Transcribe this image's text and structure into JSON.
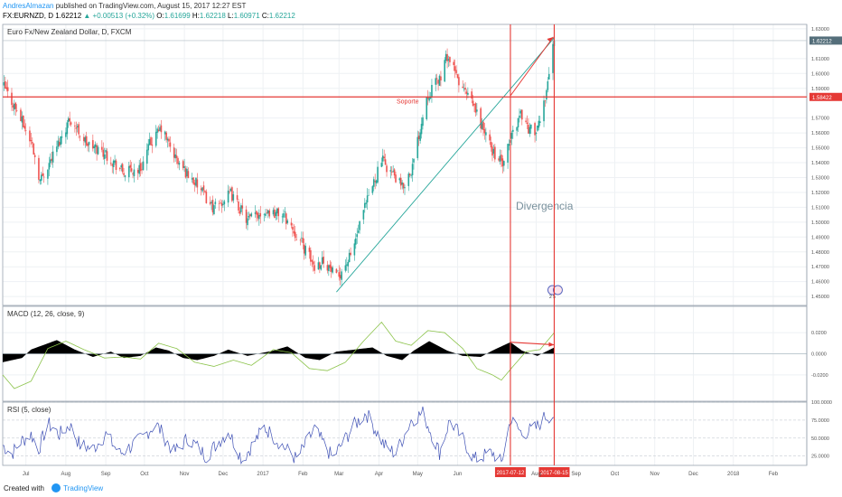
{
  "header": {
    "author": "AndresAlmazan",
    "published": "published on TradingView.com, August 15, 2017 12:27 EST",
    "symbol": "FX:EURNZD, D",
    "last": "1.62212",
    "change": "+0.00513 (+0.32%)",
    "o_label": "O:",
    "o_val": "1.61699",
    "h_label": "H:",
    "h_val": "1.62218",
    "l_label": "L:",
    "l_val": "1.60971",
    "c_label": "C:",
    "c_val": "1.62212"
  },
  "footer": {
    "created_with": "Created with",
    "brand": "TradingView"
  },
  "chart_data": {
    "type": "candlestick",
    "title": "Euro Fx/New Zealand Dollar, D, FXCM",
    "x_range": [
      "2016-06-13",
      "2018-02-27"
    ],
    "x_ticks": [
      {
        "label": "Jul",
        "date": "2016-07-01"
      },
      {
        "label": "Aug",
        "date": "2016-08-01"
      },
      {
        "label": "Sep",
        "date": "2016-09-01"
      },
      {
        "label": "Oct",
        "date": "2016-10-01"
      },
      {
        "label": "Nov",
        "date": "2016-11-01"
      },
      {
        "label": "Dec",
        "date": "2016-12-01"
      },
      {
        "label": "2017",
        "date": "2017-01-01"
      },
      {
        "label": "Feb",
        "date": "2017-02-01"
      },
      {
        "label": "Mar",
        "date": "2017-03-01"
      },
      {
        "label": "Apr",
        "date": "2017-04-01"
      },
      {
        "label": "May",
        "date": "2017-05-01"
      },
      {
        "label": "Jun",
        "date": "2017-06-01"
      },
      {
        "label": "Aug",
        "date": "2017-08-01"
      },
      {
        "label": "Sep",
        "date": "2017-09-01"
      },
      {
        "label": "Oct",
        "date": "2017-10-01"
      },
      {
        "label": "Nov",
        "date": "2017-11-01"
      },
      {
        "label": "Dec",
        "date": "2017-12-01"
      },
      {
        "label": "2018",
        "date": "2018-01-01"
      },
      {
        "label": "Feb",
        "date": "2018-02-01"
      }
    ],
    "price": {
      "ylim": [
        1.444,
        1.633
      ],
      "y_ticks": [
        "1.63000",
        "1.61000",
        "1.60000",
        "1.59000",
        "1.57000",
        "1.56000",
        "1.55000",
        "1.54000",
        "1.53000",
        "1.52000",
        "1.51000",
        "1.50000",
        "1.49000",
        "1.48000",
        "1.47000",
        "1.46000",
        "1.45000"
      ],
      "close_anchors": [
        {
          "date": "2016-06-14",
          "value": 1.591
        },
        {
          "date": "2016-06-24",
          "value": 1.575
        },
        {
          "date": "2016-07-06",
          "value": 1.552
        },
        {
          "date": "2016-07-12",
          "value": 1.528
        },
        {
          "date": "2016-07-22",
          "value": 1.545
        },
        {
          "date": "2016-08-04",
          "value": 1.57
        },
        {
          "date": "2016-08-18",
          "value": 1.552
        },
        {
          "date": "2016-08-31",
          "value": 1.547
        },
        {
          "date": "2016-09-15",
          "value": 1.533
        },
        {
          "date": "2016-09-28",
          "value": 1.536
        },
        {
          "date": "2016-10-05",
          "value": 1.552
        },
        {
          "date": "2016-10-14",
          "value": 1.563
        },
        {
          "date": "2016-10-27",
          "value": 1.54
        },
        {
          "date": "2016-11-09",
          "value": 1.527
        },
        {
          "date": "2016-11-24",
          "value": 1.509
        },
        {
          "date": "2016-12-07",
          "value": 1.519
        },
        {
          "date": "2016-12-20",
          "value": 1.501
        },
        {
          "date": "2017-01-02",
          "value": 1.508
        },
        {
          "date": "2017-01-17",
          "value": 1.505
        },
        {
          "date": "2017-01-31",
          "value": 1.486
        },
        {
          "date": "2017-02-10",
          "value": 1.47
        },
        {
          "date": "2017-02-17",
          "value": 1.475
        },
        {
          "date": "2017-02-27",
          "value": 1.462
        },
        {
          "date": "2017-03-10",
          "value": 1.477
        },
        {
          "date": "2017-03-22",
          "value": 1.512
        },
        {
          "date": "2017-04-03",
          "value": 1.542
        },
        {
          "date": "2017-04-12",
          "value": 1.532
        },
        {
          "date": "2017-04-19",
          "value": 1.523
        },
        {
          "date": "2017-04-27",
          "value": 1.537
        },
        {
          "date": "2017-05-08",
          "value": 1.585
        },
        {
          "date": "2017-05-19",
          "value": 1.598
        },
        {
          "date": "2017-05-24",
          "value": 1.612
        },
        {
          "date": "2017-06-02",
          "value": 1.594
        },
        {
          "date": "2017-06-14",
          "value": 1.577
        },
        {
          "date": "2017-06-28",
          "value": 1.548
        },
        {
          "date": "2017-07-07",
          "value": 1.538
        },
        {
          "date": "2017-07-12",
          "value": 1.556
        },
        {
          "date": "2017-07-20",
          "value": 1.574
        },
        {
          "date": "2017-07-26",
          "value": 1.563
        },
        {
          "date": "2017-08-02",
          "value": 1.561
        },
        {
          "date": "2017-08-08",
          "value": 1.585
        },
        {
          "date": "2017-08-15",
          "value": 1.622
        }
      ],
      "trendline": [
        {
          "date": "2017-02-27",
          "value": 1.453
        },
        {
          "date": "2017-08-15",
          "value": 1.624
        }
      ],
      "support_level": 1.58422,
      "support_label": "Soporte",
      "current_price": 1.62212,
      "text_annotation": "Divergencia",
      "marker_text": "2 5"
    },
    "macd": {
      "title": "MACD (12, 26, close, 9)",
      "ylim": [
        -0.045,
        0.045
      ],
      "y_ticks": [
        "0.0200",
        "0.0000",
        "-0.0200"
      ],
      "hist_anchors": [
        {
          "date": "2016-06-13",
          "value": -0.008
        },
        {
          "date": "2016-06-28",
          "value": -0.004
        },
        {
          "date": "2016-07-05",
          "value": 0.004
        },
        {
          "date": "2016-07-25",
          "value": 0.013
        },
        {
          "date": "2016-08-08",
          "value": 0.004
        },
        {
          "date": "2016-08-22",
          "value": -0.003
        },
        {
          "date": "2016-09-05",
          "value": 0.002
        },
        {
          "date": "2016-09-15",
          "value": -0.004
        },
        {
          "date": "2016-09-28",
          "value": -0.002
        },
        {
          "date": "2016-10-10",
          "value": 0.006
        },
        {
          "date": "2016-10-20",
          "value": 0.003
        },
        {
          "date": "2016-10-31",
          "value": -0.004
        },
        {
          "date": "2016-11-11",
          "value": -0.006
        },
        {
          "date": "2016-11-24",
          "value": -0.002
        },
        {
          "date": "2016-12-05",
          "value": 0.004
        },
        {
          "date": "2016-12-20",
          "value": -0.002
        },
        {
          "date": "2017-01-09",
          "value": 0.003
        },
        {
          "date": "2017-01-20",
          "value": 0.007
        },
        {
          "date": "2017-02-03",
          "value": -0.004
        },
        {
          "date": "2017-02-14",
          "value": -0.006
        },
        {
          "date": "2017-02-27",
          "value": 0.002
        },
        {
          "date": "2017-03-13",
          "value": 0.004
        },
        {
          "date": "2017-03-27",
          "value": 0.006
        },
        {
          "date": "2017-04-07",
          "value": -0.002
        },
        {
          "date": "2017-04-19",
          "value": -0.006
        },
        {
          "date": "2017-04-28",
          "value": 0.003
        },
        {
          "date": "2017-05-10",
          "value": 0.012
        },
        {
          "date": "2017-05-24",
          "value": 0.003
        },
        {
          "date": "2017-06-05",
          "value": -0.002
        },
        {
          "date": "2017-06-19",
          "value": -0.003
        },
        {
          "date": "2017-06-28",
          "value": 0.003
        },
        {
          "date": "2017-07-12",
          "value": 0.011
        },
        {
          "date": "2017-07-21",
          "value": 0.003
        },
        {
          "date": "2017-08-02",
          "value": -0.002
        },
        {
          "date": "2017-08-15",
          "value": 0.006
        }
      ],
      "signal_anchors": [
        {
          "date": "2016-06-13",
          "value": -0.02
        },
        {
          "date": "2016-06-22",
          "value": -0.033
        },
        {
          "date": "2016-07-05",
          "value": -0.026
        },
        {
          "date": "2016-07-18",
          "value": 0.005
        },
        {
          "date": "2016-08-01",
          "value": 0.012
        },
        {
          "date": "2016-08-15",
          "value": 0.004
        },
        {
          "date": "2016-08-31",
          "value": -0.004
        },
        {
          "date": "2016-09-15",
          "value": -0.003
        },
        {
          "date": "2016-09-28",
          "value": -0.005
        },
        {
          "date": "2016-10-12",
          "value": 0.01
        },
        {
          "date": "2016-10-26",
          "value": 0.005
        },
        {
          "date": "2016-11-09",
          "value": -0.008
        },
        {
          "date": "2016-11-24",
          "value": -0.012
        },
        {
          "date": "2016-12-09",
          "value": -0.006
        },
        {
          "date": "2016-12-23",
          "value": -0.011
        },
        {
          "date": "2017-01-09",
          "value": 0.004
        },
        {
          "date": "2017-01-23",
          "value": 0.001
        },
        {
          "date": "2017-02-06",
          "value": -0.014
        },
        {
          "date": "2017-02-20",
          "value": -0.016
        },
        {
          "date": "2017-03-06",
          "value": -0.008
        },
        {
          "date": "2017-03-20",
          "value": 0.012
        },
        {
          "date": "2017-04-03",
          "value": 0.03
        },
        {
          "date": "2017-04-14",
          "value": 0.012
        },
        {
          "date": "2017-04-26",
          "value": 0.008
        },
        {
          "date": "2017-05-09",
          "value": 0.022
        },
        {
          "date": "2017-05-22",
          "value": 0.02
        },
        {
          "date": "2017-06-05",
          "value": 0.005
        },
        {
          "date": "2017-06-16",
          "value": -0.014
        },
        {
          "date": "2017-06-28",
          "value": -0.02
        },
        {
          "date": "2017-07-05",
          "value": -0.025
        },
        {
          "date": "2017-07-14",
          "value": -0.012
        },
        {
          "date": "2017-07-24",
          "value": 0.002
        },
        {
          "date": "2017-08-04",
          "value": 0.004
        },
        {
          "date": "2017-08-15",
          "value": 0.02
        }
      ],
      "divergence_line": [
        {
          "date": "2017-07-12",
          "value": 0.011
        },
        {
          "date": "2017-08-15",
          "value": 0.0085
        }
      ]
    },
    "rsi": {
      "title": "RSI (5, close)",
      "ylim": [
        12,
        100
      ],
      "y_ticks": [
        "100.0000",
        "75.0000",
        "50.0000",
        "25.0000"
      ],
      "anchors": [
        {
          "date": "2016-06-13",
          "value": 40
        },
        {
          "date": "2016-06-20",
          "value": 28
        },
        {
          "date": "2016-06-27",
          "value": 45
        },
        {
          "date": "2016-07-05",
          "value": 55
        },
        {
          "date": "2016-07-11",
          "value": 35
        },
        {
          "date": "2016-07-18",
          "value": 70
        },
        {
          "date": "2016-07-27",
          "value": 55
        },
        {
          "date": "2016-08-04",
          "value": 68
        },
        {
          "date": "2016-08-12",
          "value": 40
        },
        {
          "date": "2016-08-22",
          "value": 35
        },
        {
          "date": "2016-09-01",
          "value": 55
        },
        {
          "date": "2016-09-12",
          "value": 28
        },
        {
          "date": "2016-09-26",
          "value": 45
        },
        {
          "date": "2016-10-10",
          "value": 70
        },
        {
          "date": "2016-10-24",
          "value": 30
        },
        {
          "date": "2016-11-04",
          "value": 50
        },
        {
          "date": "2016-11-18",
          "value": 25
        },
        {
          "date": "2016-12-05",
          "value": 60
        },
        {
          "date": "2016-12-16",
          "value": 20
        },
        {
          "date": "2017-01-02",
          "value": 65
        },
        {
          "date": "2017-01-16",
          "value": 40
        },
        {
          "date": "2017-01-27",
          "value": 20
        },
        {
          "date": "2017-02-10",
          "value": 62
        },
        {
          "date": "2017-02-24",
          "value": 22
        },
        {
          "date": "2017-03-13",
          "value": 68
        },
        {
          "date": "2017-03-22",
          "value": 85
        },
        {
          "date": "2017-04-05",
          "value": 40
        },
        {
          "date": "2017-04-14",
          "value": 28
        },
        {
          "date": "2017-04-26",
          "value": 75
        },
        {
          "date": "2017-05-05",
          "value": 85
        },
        {
          "date": "2017-05-18",
          "value": 30
        },
        {
          "date": "2017-05-26",
          "value": 75
        },
        {
          "date": "2017-06-06",
          "value": 45
        },
        {
          "date": "2017-06-14",
          "value": 20
        },
        {
          "date": "2017-06-28",
          "value": 30
        },
        {
          "date": "2017-07-05",
          "value": 15
        },
        {
          "date": "2017-07-12",
          "value": 76
        },
        {
          "date": "2017-07-21",
          "value": 56
        },
        {
          "date": "2017-08-01",
          "value": 64
        },
        {
          "date": "2017-08-08",
          "value": 80
        },
        {
          "date": "2017-08-15",
          "value": 82
        }
      ]
    },
    "markers": [
      {
        "date": "2017-07-12",
        "label": "2017-07-12"
      },
      {
        "date": "2017-08-15",
        "label": "2017-08-15"
      }
    ],
    "colors": {
      "up": "#26a69a",
      "down": "#ef5350",
      "annotation_red": "#e53935",
      "trendline": "#26a69a",
      "macd_hist": "#000000",
      "macd_signal": "#8bc34a",
      "rsi_line": "#3f51b5",
      "grid": "#eef1f4",
      "axis_text": "#555555"
    }
  }
}
